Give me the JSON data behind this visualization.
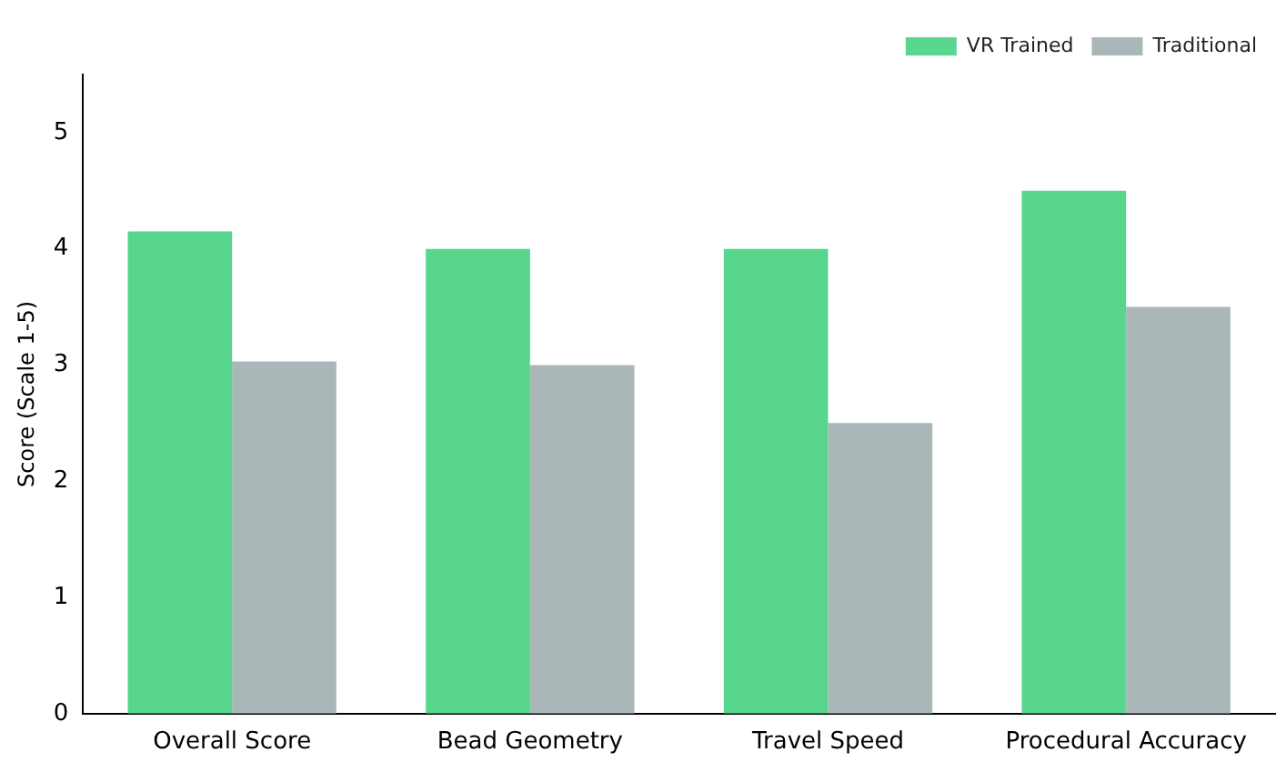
{
  "chart_data": {
    "type": "bar",
    "ylabel": "Score (Scale 1-5)",
    "categories": [
      "Overall Score",
      "Bead Geometry",
      "Travel Speed",
      "Procedural Accuracy"
    ],
    "series": [
      {
        "name": "VR Trained",
        "color": "#58d68d",
        "values": [
          4.15,
          4.0,
          4.0,
          4.5
        ]
      },
      {
        "name": "Traditional",
        "color": "#aab7b8",
        "values": [
          3.03,
          3.0,
          2.5,
          3.5
        ]
      }
    ],
    "ylim": [
      0,
      5.5
    ],
    "yticks": [
      0,
      1,
      2,
      3,
      4,
      5
    ],
    "grid": false,
    "legend": "top right"
  }
}
